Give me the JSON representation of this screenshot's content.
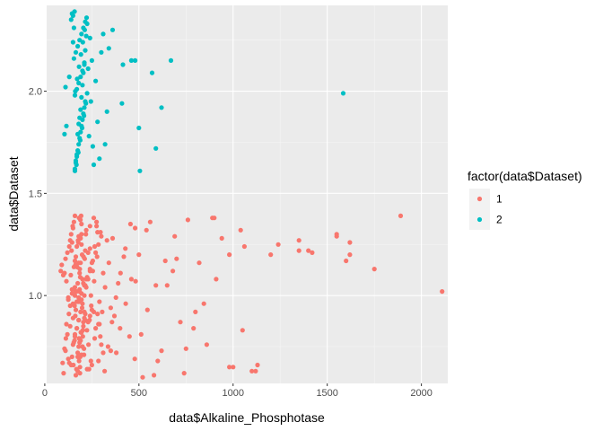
{
  "chart_data": {
    "type": "scatter",
    "xlabel": "data$Alkaline_Phosphotase",
    "ylabel": "data$Dataset",
    "xlim": [
      10,
      2140
    ],
    "ylim": [
      0.57,
      2.42
    ],
    "x_ticks": [
      0,
      500,
      1000,
      1500,
      2000
    ],
    "x_tick_labels": [
      "0",
      "500",
      "1000",
      "1500",
      "2000"
    ],
    "y_ticks": [
      1.0,
      1.5,
      2.0
    ],
    "y_tick_labels": [
      "1.0",
      "1.5",
      "2.0"
    ],
    "grid": true,
    "background": "#ebebeb",
    "legend": {
      "title": "factor(data$Dataset)",
      "position": "right",
      "entries": [
        "1",
        "2"
      ]
    },
    "jitter_height": 0.4,
    "series": [
      {
        "name": "1",
        "color": "#f8766d",
        "x": [
          187,
          187,
          182,
          195,
          208,
          154,
          202,
          202,
          290,
          210,
          260,
          158,
          195,
          145,
          160,
          482,
          98,
          186,
          180,
          206,
          215,
          195,
          190,
          280,
          275,
          189,
          175,
          140,
          125,
          310,
          180,
          190,
          160,
          170,
          230,
          240,
          250,
          1050,
          890,
          150,
          180,
          165,
          215,
          200,
          185,
          172,
          160,
          198,
          240,
          145,
          180,
          220,
          195,
          260,
          168,
          130,
          145,
          110,
          300,
          182,
          192,
          205,
          215,
          280,
          350,
          170,
          160,
          185,
          175,
          188,
          85,
          90,
          110,
          120,
          130,
          135,
          140,
          150,
          155,
          160,
          165,
          170,
          175,
          180,
          185,
          190,
          195,
          200,
          210,
          220,
          230,
          240,
          250,
          270,
          290,
          310,
          330,
          350,
          370,
          390,
          420,
          450,
          480,
          520,
          560,
          600,
          650,
          700,
          750,
          800,
          900,
          1000,
          1100,
          1200,
          1350,
          1400,
          1550,
          1600,
          1620,
          1750,
          1890,
          2110,
          100,
          105,
          115,
          125,
          138,
          142,
          148,
          152,
          158,
          162,
          168,
          172,
          178,
          182,
          188,
          192,
          198,
          205,
          212,
          218,
          225,
          232,
          238,
          245,
          255,
          265,
          275,
          285,
          295,
          305,
          320,
          340,
          360,
          380,
          400,
          430,
          460,
          500,
          540,
          580,
          620,
          680,
          720,
          760,
          820,
          860,
          940,
          980,
          1120,
          1060,
          95,
          112,
          128,
          146,
          163,
          177,
          193,
          208,
          224,
          247,
          262,
          278,
          296,
          318,
          336,
          357,
          378,
          402,
          428,
          455,
          478,
          512,
          545,
          590,
          640,
          690,
          740,
          790,
          845,
          910,
          980,
          1040,
          1130,
          1240,
          1350,
          1420,
          1550,
          1620,
          120,
          135,
          150,
          165,
          180,
          195,
          210,
          225,
          240,
          255,
          270,
          285,
          300,
          150,
          160,
          170,
          180,
          190,
          200,
          210,
          220,
          230,
          240,
          250,
          175,
          185,
          195,
          205,
          215,
          155,
          165,
          145,
          135,
          125,
          115,
          105,
          235,
          245,
          265,
          285
        ],
        "y": [
          0.62,
          0.65,
          0.68,
          0.71,
          0.74,
          0.77,
          0.8,
          0.83,
          0.86,
          0.89,
          0.92,
          0.95,
          0.98,
          1.01,
          1.04,
          1.07,
          1.1,
          1.13,
          1.16,
          1.19,
          1.22,
          1.25,
          1.28,
          1.31,
          1.34,
          1.37,
          0.63,
          0.66,
          0.69,
          0.72,
          0.75,
          0.78,
          0.81,
          0.84,
          0.87,
          0.9,
          0.93,
          0.83,
          1.38,
          0.96,
          0.99,
          1.02,
          1.05,
          1.08,
          1.11,
          1.14,
          1.17,
          1.2,
          1.23,
          1.26,
          1.29,
          1.32,
          1.35,
          1.38,
          0.64,
          0.67,
          0.7,
          0.73,
          0.76,
          0.79,
          0.82,
          0.85,
          0.88,
          0.91,
          0.94,
          0.97,
          1.0,
          1.03,
          1.06,
          1.09,
          1.12,
          1.15,
          1.18,
          1.21,
          1.24,
          1.27,
          1.3,
          1.33,
          1.36,
          1.39,
          0.61,
          1.24,
          0.7,
          0.88,
          1.02,
          1.16,
          1.3,
          0.75,
          0.92,
          1.08,
          1.21,
          1.34,
          0.66,
          0.84,
          0.97,
          1.11,
          1.27,
          0.73,
          0.9,
          1.06,
          1.19,
          0.8,
          1.33,
          0.6,
          1.36,
          0.68,
          1.05,
          1.18,
          0.74,
          0.92,
          1.38,
          0.65,
          0.63,
          1.2,
          1.27,
          1.22,
          1.3,
          1.17,
          1.26,
          1.13,
          1.39,
          1.02,
          0.62,
          0.74,
          0.86,
          0.98,
          1.1,
          1.22,
          1.34,
          0.66,
          0.78,
          0.9,
          1.02,
          1.14,
          1.26,
          1.38,
          0.7,
          0.82,
          0.94,
          1.06,
          1.18,
          1.3,
          0.64,
          0.76,
          0.88,
          1.0,
          1.12,
          1.24,
          1.36,
          0.68,
          0.8,
          0.92,
          1.04,
          1.16,
          1.28,
          0.72,
          0.84,
          0.96,
          1.08,
          1.2,
          1.32,
          0.61,
          0.73,
          1.12,
          0.87,
          1.37,
          1.16,
          0.76,
          1.28,
          0.65,
          0.63,
          1.24,
          0.67,
          0.79,
          0.91,
          1.03,
          1.15,
          1.27,
          1.39,
          0.71,
          0.83,
          0.95,
          1.07,
          1.19,
          1.31,
          0.63,
          0.75,
          0.87,
          0.99,
          1.11,
          1.23,
          1.35,
          0.69,
          0.81,
          0.93,
          1.05,
          1.17,
          1.29,
          0.62,
          0.84,
          0.96,
          1.08,
          1.2,
          1.32,
          0.66,
          1.25,
          1.22,
          1.21,
          1.29,
          1.2,
          0.81,
          0.85,
          0.89,
          0.93,
          0.97,
          1.01,
          1.05,
          1.09,
          1.13,
          1.17,
          1.21,
          1.25,
          1.29,
          0.76,
          0.8,
          0.84,
          0.88,
          0.92,
          0.96,
          1.0,
          1.04,
          1.08,
          1.12,
          1.16,
          0.72,
          0.77,
          0.82,
          0.87,
          0.91,
          1.14,
          1.19,
          1.03,
          0.95,
          0.99,
          1.07,
          1.11,
          0.64,
          0.68,
          0.79,
          0.86
        ]
      },
      {
        "name": "2",
        "color": "#00bfc4",
        "x": [
          160,
          165,
          170,
          175,
          180,
          185,
          190,
          195,
          200,
          205,
          210,
          215,
          160,
          170,
          180,
          190,
          200,
          210,
          155,
          165,
          175,
          185,
          195,
          205,
          215,
          150,
          158,
          168,
          178,
          188,
          198,
          208,
          218,
          162,
          172,
          182,
          192,
          202,
          212,
          222,
          240,
          255,
          270,
          290,
          310,
          330,
          250,
          300,
          340,
          360,
          280,
          320,
          260,
          415,
          410,
          460,
          480,
          500,
          570,
          590,
          620,
          670,
          1585,
          505,
          160,
          165,
          170,
          175,
          180,
          185,
          190,
          195,
          200,
          205,
          210,
          215,
          220,
          225,
          150,
          155,
          235,
          245,
          130,
          110,
          115,
          105,
          230,
          140,
          145,
          225
        ],
        "y": [
          1.62,
          1.65,
          1.68,
          1.71,
          1.74,
          1.77,
          1.8,
          1.83,
          1.86,
          1.89,
          1.92,
          1.95,
          1.98,
          2.01,
          2.04,
          2.07,
          2.1,
          2.13,
          2.16,
          2.19,
          2.22,
          2.25,
          2.28,
          2.31,
          2.34,
          2.37,
          2.39,
          1.64,
          1.7,
          1.76,
          1.82,
          1.88,
          1.94,
          2.0,
          2.06,
          2.12,
          2.18,
          2.24,
          2.3,
          2.36,
          2.26,
          1.73,
          2.05,
          1.67,
          2.28,
          1.9,
          2.15,
          2.19,
          2.21,
          2.3,
          1.85,
          1.74,
          1.64,
          2.13,
          1.94,
          2.15,
          2.15,
          1.82,
          2.09,
          1.72,
          1.92,
          2.15,
          1.99,
          1.61,
          1.61,
          1.66,
          1.69,
          1.79,
          1.84,
          1.87,
          1.91,
          1.97,
          2.03,
          2.09,
          2.14,
          2.2,
          2.27,
          2.33,
          2.24,
          2.31,
          1.78,
          1.95,
          2.07,
          2.02,
          1.83,
          1.79,
          2.11,
          2.35,
          2.38,
          1.99
        ]
      }
    ]
  }
}
